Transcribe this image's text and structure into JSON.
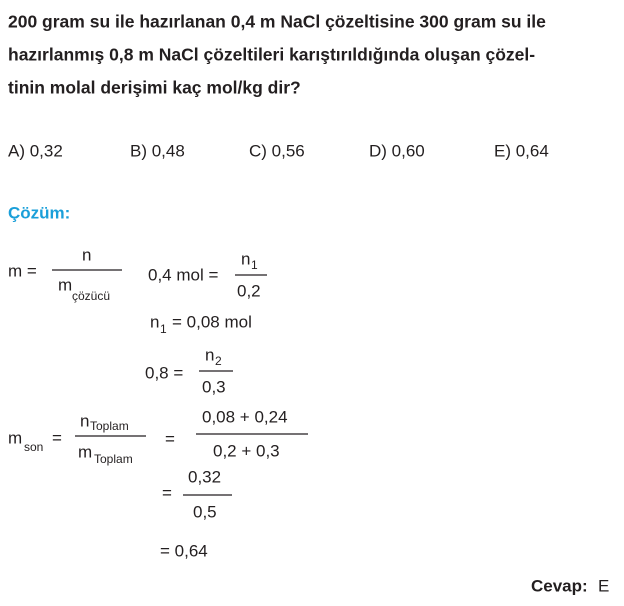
{
  "question": {
    "lines": [
      "200 gram su ile hazırlanan 0,4 m NaCl çözeltisine 300 gram su ile",
      "hazırlanmış 0,8 m NaCl çözeltileri karıştırıldığında oluşan çözel-",
      "tinin molal derişimi kaç mol/kg dir?"
    ]
  },
  "options": [
    "A) 0,32",
    "B) 0,48",
    "C) 0,56",
    "D) 0,60",
    "E) 0,64"
  ],
  "solution": {
    "heading": "Çözüm:",
    "formula1": {
      "lhs": "m =",
      "numerator": "n",
      "denominator": "m",
      "denominator_sub": "çözücü"
    },
    "step1": {
      "lhs": "0,4 mol =",
      "numerator": "n",
      "numerator_sub": "1",
      "denominator": "0,2"
    },
    "step2": {
      "var": "n",
      "var_sub": "1",
      "rhs": "= 0,08 mol"
    },
    "step3": {
      "lhs": "0,8 =",
      "numerator": "n",
      "numerator_sub": "2",
      "denominator": "0,3"
    },
    "formula2": {
      "lhs": "m",
      "lhs_sub": "son",
      "eq": "=",
      "numerator": "n",
      "numerator_sub": "Toplam",
      "denominator": "m",
      "denominator_sub": "Toplam"
    },
    "step4": {
      "eq": "=",
      "numerator": "0,08 + 0,24",
      "denominator": "0,2 + 0,3"
    },
    "step5": {
      "eq": "=",
      "numerator": "0,32",
      "denominator": "0,5"
    },
    "result": "= 0,64"
  },
  "answer": {
    "label": "Cevap:",
    "value": "E"
  }
}
